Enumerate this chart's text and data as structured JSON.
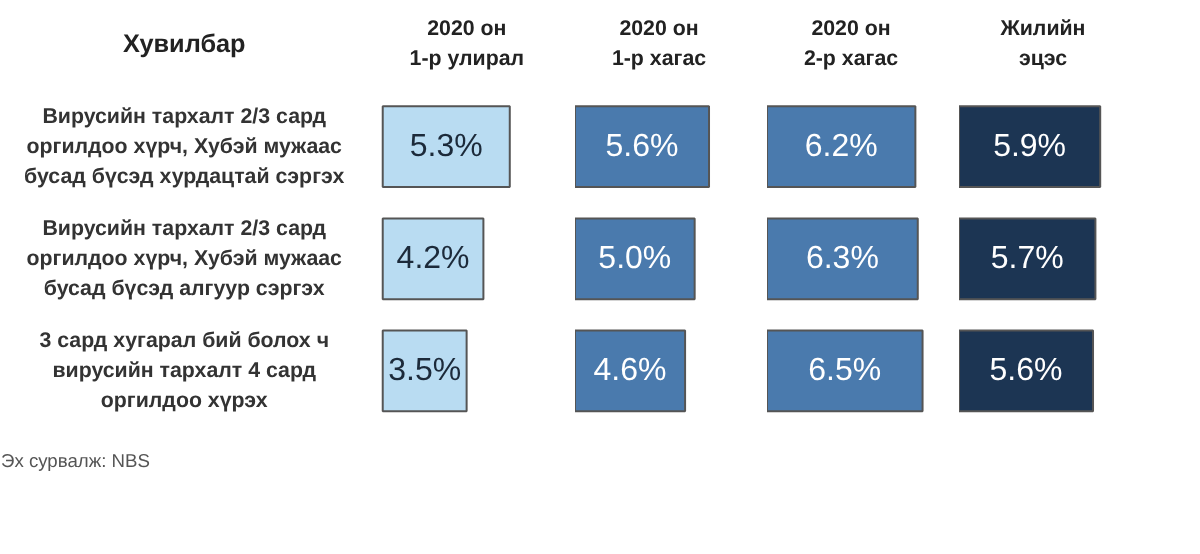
{
  "chart_data": [
    {
      "type": "bar",
      "orientation": "horizontal",
      "title": "2020 он 1-р улирал",
      "ylabel": "Хувилбар",
      "categories": [
        "Вирусийн тархалт 2/3 сард оргилдоо хүрч, Хубэй мужаас бусад бүсэд хурдацтай сэргэх",
        "Вирусийн тархалт 2/3 сард оргилдоо хүрч, Хубэй мужаас бусад бүсэд алгуур сэргэх",
        "3 сард хугарал бий болох ч вирусийн тархалт 4 сард оргилдоо хүрэх"
      ],
      "values": [
        5.3,
        4.2,
        3.5
      ],
      "value_labels": [
        "5.3%",
        "4.2%",
        "3.5%"
      ],
      "color": "#b9dcf2",
      "tick_labels": "y",
      "annotations": [
        "Эх сурвалж: NBS"
      ]
    },
    {
      "type": "bar",
      "orientation": "horizontal",
      "title": "2020 он 1-р хагас",
      "categories": [
        "Вирусийн тархалт 2/3 сард оргилдоо хүрч, Хубэй мужаас бусад бүсэд хурдацтай сэргэх",
        "Вирусийн тархалт 2/3 сард оргилдоо хүрч, Хубэй мужаас бусад бүсэд алгуур сэргэх",
        "3 сард хугарал бий болох ч вирусийн тархалт 4 сард оргилдоо хүрэх"
      ],
      "values": [
        5.6,
        5.0,
        4.6
      ],
      "value_labels": [
        "5.6%",
        "5.0%",
        "4.6%"
      ],
      "color": "#4a7aad",
      "tick_labels": false
    },
    {
      "type": "bar",
      "orientation": "horizontal",
      "title": "2020 он 2-р хагас",
      "categories": [
        "Вирусийн тархалт 2/3 сард оргилдоо хүрч, Хубэй мужаас бусад бүсэд хурдацтай сэргэх",
        "Вирусийн тархалт 2/3 сард оргилдоо хүрч, Хубэй мужаас бусад бүсэд алгуур сэргэх",
        "3 сард хугарал бий болох ч вирусийн тархалт 4 сард оргилдоо хүрэх"
      ],
      "values": [
        6.2,
        6.3,
        6.5
      ],
      "value_labels": [
        "6.2%",
        "6.3%",
        "6.5%"
      ],
      "color": "#4a7aad",
      "tick_labels": false
    },
    {
      "type": "bar",
      "orientation": "horizontal",
      "title": "Жилийн эцэс",
      "categories": [
        "Вирусийн тархалт 2/3 сард оргилдоо хүрч, Хубэй мужаас бусад бүсэд хурдацтай сэргэх",
        "Вирусийн тархалт 2/3 сард оргилдоо хүрч, Хубэй мужаас бусад бүсэд алгуур сэргэх",
        "3 сард хугарал бий болох ч вирусийн тархалт 4 сард оргилдоо хүрэх"
      ],
      "values": [
        5.9,
        5.7,
        5.6
      ],
      "value_labels": [
        "5.9%",
        "5.7%",
        "5.6%"
      ],
      "color": "#1c3553",
      "tick_labels": false
    }
  ]
}
